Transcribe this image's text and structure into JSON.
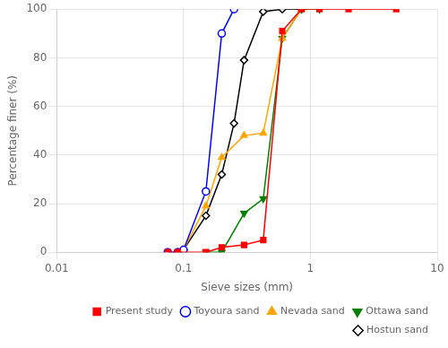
{
  "chart_data": {
    "type": "line",
    "xlabel": "Sieve sizes (mm)",
    "ylabel": "Percentage finer (%)",
    "log": "x",
    "xlim": [
      0.01,
      10
    ],
    "ylim": [
      0,
      100
    ],
    "xticks": [
      0.01,
      0.1,
      1,
      10
    ],
    "yticks": [
      0,
      20,
      40,
      60,
      80,
      100
    ],
    "grid": true,
    "legend": "lower right",
    "series": [
      {
        "name": "Present study",
        "color": "#ff0000",
        "marker": "square",
        "x": [
          0.075,
          0.09,
          0.15,
          0.2,
          0.3,
          0.425,
          0.6,
          0.85,
          1.18,
          2.0,
          4.75
        ],
        "values": [
          0,
          0,
          0,
          2,
          3,
          5,
          91,
          100,
          100,
          100,
          100
        ]
      },
      {
        "name": "Toyoura sand",
        "color": "#0000ff",
        "marker": "circle-open",
        "x": [
          0.075,
          0.09,
          0.1,
          0.15,
          0.2,
          0.25
        ],
        "values": [
          0,
          0,
          1,
          25,
          90,
          100
        ]
      },
      {
        "name": "Nevada sand",
        "color": "#ffa500",
        "marker": "triangle",
        "x": [
          0.09,
          0.1,
          0.15,
          0.2,
          0.3,
          0.425,
          0.6,
          0.85
        ],
        "values": [
          0,
          1,
          19,
          39,
          48,
          49,
          88,
          100
        ]
      },
      {
        "name": "Ottawa sand",
        "color": "#008000",
        "marker": "triangle-down",
        "x": [
          0.15,
          0.2,
          0.3,
          0.425,
          0.6,
          0.85,
          1.18
        ],
        "values": [
          0,
          0,
          16,
          22,
          88,
          100,
          100
        ]
      },
      {
        "name": "Hostun sand",
        "color": "#000000",
        "marker": "diamond-open",
        "x": [
          0.09,
          0.1,
          0.15,
          0.2,
          0.25,
          0.3,
          0.425,
          0.6,
          0.85
        ],
        "values": [
          0,
          1,
          15,
          32,
          53,
          79,
          99,
          100,
          100
        ]
      }
    ]
  }
}
